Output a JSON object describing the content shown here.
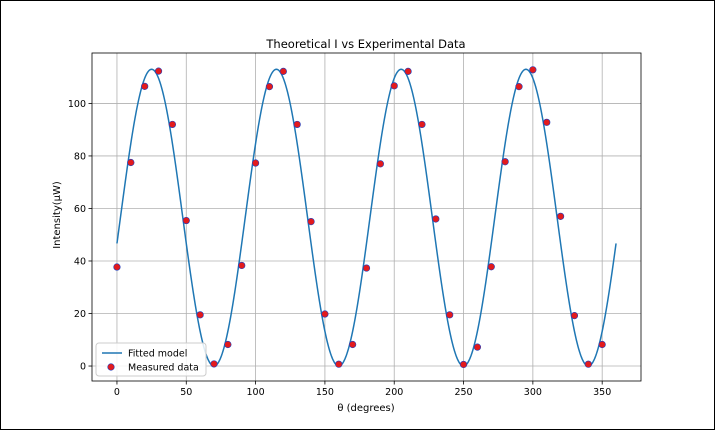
{
  "chart_data": {
    "type": "scatter",
    "title": "Theoretical I vs Experimental Data",
    "xlabel": "θ (degrees)",
    "ylabel": "Intensity(μW)",
    "xlim": [
      -18,
      378
    ],
    "ylim": [
      -5.7,
      119.2
    ],
    "xticks": [
      0,
      50,
      100,
      150,
      200,
      250,
      300,
      350
    ],
    "yticks": [
      0,
      20,
      40,
      60,
      80,
      100
    ],
    "grid": true,
    "legend_position": "lower-left",
    "colors": {
      "line": "#1f77b4",
      "points": "#e31a1c",
      "point_edge": "#1f3fbf"
    },
    "model": {
      "name": "Fitted model",
      "formula": "56.5 - 56.5*cos(4*(theta - 70))",
      "x_range": [
        0,
        360
      ]
    },
    "series": [
      {
        "name": "Measured data",
        "x": [
          0,
          10,
          20,
          30,
          40,
          50,
          60,
          70,
          80,
          90,
          100,
          110,
          120,
          130,
          140,
          150,
          160,
          170,
          180,
          190,
          200,
          210,
          220,
          230,
          240,
          250,
          260,
          270,
          280,
          290,
          300,
          310,
          320,
          330,
          340,
          350
        ],
        "y": [
          37.7,
          77.5,
          106.5,
          112.3,
          92.0,
          55.4,
          19.5,
          0.8,
          8.2,
          38.3,
          77.3,
          106.4,
          112.2,
          92.0,
          55.0,
          19.8,
          0.7,
          8.2,
          37.3,
          77.0,
          106.7,
          112.2,
          92.0,
          56.0,
          19.5,
          0.6,
          7.2,
          37.8,
          77.8,
          106.4,
          112.8,
          92.8,
          57.0,
          19.2,
          0.7,
          8.2
        ]
      }
    ]
  }
}
